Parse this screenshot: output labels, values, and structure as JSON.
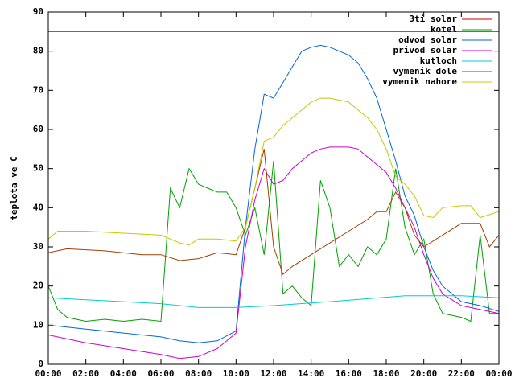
{
  "chart_data": {
    "type": "line",
    "ylabel": "teplota ve C",
    "xlim": [
      0,
      24
    ],
    "ylim": [
      0,
      90
    ],
    "xticks": [
      {
        "value": 0,
        "label": "00:00"
      },
      {
        "value": 2,
        "label": "02:00"
      },
      {
        "value": 4,
        "label": "04:00"
      },
      {
        "value": 6,
        "label": "06:00"
      },
      {
        "value": 8,
        "label": "08:00"
      },
      {
        "value": 10,
        "label": "10:00"
      },
      {
        "value": 12,
        "label": "12:00"
      },
      {
        "value": 14,
        "label": "14:00"
      },
      {
        "value": 16,
        "label": "16:00"
      },
      {
        "value": 18,
        "label": "18:00"
      },
      {
        "value": 20,
        "label": "20:00"
      },
      {
        "value": 22,
        "label": "22:00"
      },
      {
        "value": 24,
        "label": "00:00"
      }
    ],
    "yticks": [
      0,
      10,
      20,
      30,
      40,
      50,
      60,
      70,
      80,
      90
    ],
    "legend": "top-right",
    "series": [
      {
        "name": "3ti solar",
        "color": "#cc0000",
        "x": [
          0,
          24
        ],
        "values": [
          85,
          85
        ]
      },
      {
        "name": "kotel",
        "color": "#00a000",
        "x": [
          0,
          0.5,
          1,
          2,
          3,
          4,
          5,
          6,
          6.5,
          7,
          7.5,
          8,
          8.5,
          9,
          9.5,
          10,
          10.5,
          11,
          11.5,
          12,
          12.5,
          13,
          13.5,
          14,
          14.5,
          15,
          15.5,
          16,
          16.5,
          17,
          17.5,
          18,
          18.5,
          19,
          19.5,
          20,
          20.5,
          21,
          22,
          22.5,
          23,
          23.5,
          24
        ],
        "values": [
          20,
          14,
          12,
          11,
          11.5,
          11,
          11.5,
          11,
          45,
          40,
          50,
          46,
          45,
          44,
          44,
          40,
          33,
          40,
          28,
          52,
          18,
          20,
          17,
          15,
          47,
          40,
          25,
          28,
          25,
          30,
          28,
          32,
          50,
          35,
          28,
          32,
          18,
          13,
          12,
          11,
          33,
          13,
          13
        ]
      },
      {
        "name": "odvod solar",
        "color": "#0066dd",
        "x": [
          0,
          2,
          4,
          6,
          7,
          8,
          9,
          10,
          10.5,
          11,
          11.5,
          12,
          12.5,
          13,
          13.5,
          14,
          14.5,
          15,
          15.5,
          16,
          16.5,
          17,
          17.5,
          18,
          18.5,
          19,
          19.5,
          20,
          20.5,
          21,
          21.5,
          22,
          23,
          24
        ],
        "values": [
          10,
          9,
          8,
          7,
          6,
          5.5,
          6,
          8.5,
          35,
          55,
          69,
          68,
          72,
          76,
          80,
          81,
          81.5,
          81,
          80,
          79,
          77,
          73,
          68,
          60,
          52,
          43,
          38,
          30,
          24,
          20,
          18,
          16,
          15,
          13.5
        ]
      },
      {
        "name": "privod solar",
        "color": "#cc00cc",
        "x": [
          0,
          2,
          4,
          6,
          7,
          8,
          9,
          10,
          10.5,
          11,
          11.5,
          12,
          12.5,
          13,
          13.5,
          14,
          14.5,
          15,
          16,
          16.5,
          17,
          17.5,
          18,
          18.5,
          19,
          19.5,
          20,
          20.5,
          21,
          22,
          23,
          24
        ],
        "values": [
          7.5,
          5.5,
          4,
          2.5,
          1.5,
          2,
          4,
          8,
          30,
          42,
          50,
          46,
          47,
          50,
          52,
          54,
          55,
          55.5,
          55.5,
          55,
          53,
          51,
          49,
          45,
          40,
          35,
          28,
          22,
          18,
          15,
          14,
          13
        ]
      },
      {
        "name": "kutloch",
        "color": "#00cccc",
        "x": [
          0,
          6,
          8,
          10,
          12,
          15,
          19,
          22,
          24
        ],
        "values": [
          17,
          15.5,
          14.5,
          14.5,
          15,
          16,
          17.5,
          17.5,
          17
        ]
      },
      {
        "name": "vymenik dole",
        "color": "#a04000",
        "x": [
          0,
          1,
          3,
          5,
          6,
          7,
          8,
          9,
          10,
          10.5,
          11,
          11.5,
          12,
          12.5,
          13,
          14,
          15,
          16,
          17,
          17.5,
          18,
          18.5,
          19,
          19.5,
          20,
          21,
          22,
          23,
          23.5,
          24
        ],
        "values": [
          28.5,
          29.5,
          29,
          28,
          28,
          26.5,
          27,
          28.5,
          28,
          35,
          45,
          55,
          30,
          23,
          25,
          28,
          31,
          34,
          37,
          39,
          39,
          44,
          40,
          33,
          30,
          33,
          36,
          36,
          30,
          33
        ]
      },
      {
        "name": "vymenik nahore",
        "color": "#c8c800",
        "x": [
          0,
          0.5,
          2,
          4,
          6,
          7,
          7.5,
          8,
          9,
          10,
          10.5,
          11,
          11.5,
          12,
          12.5,
          13,
          13.5,
          14,
          14.5,
          15,
          16,
          16.5,
          17,
          17.5,
          18,
          18.5,
          19,
          19.5,
          20,
          20.5,
          21,
          22,
          22.5,
          23,
          24
        ],
        "values": [
          32,
          34,
          34,
          33.5,
          33,
          31,
          30.5,
          32,
          32,
          31.5,
          35,
          45,
          57,
          58,
          61,
          63,
          65,
          67,
          68,
          68,
          67,
          65,
          63,
          60,
          55,
          48,
          46,
          43,
          38,
          37.5,
          40,
          40.5,
          40.5,
          37.5,
          39
        ]
      }
    ]
  }
}
